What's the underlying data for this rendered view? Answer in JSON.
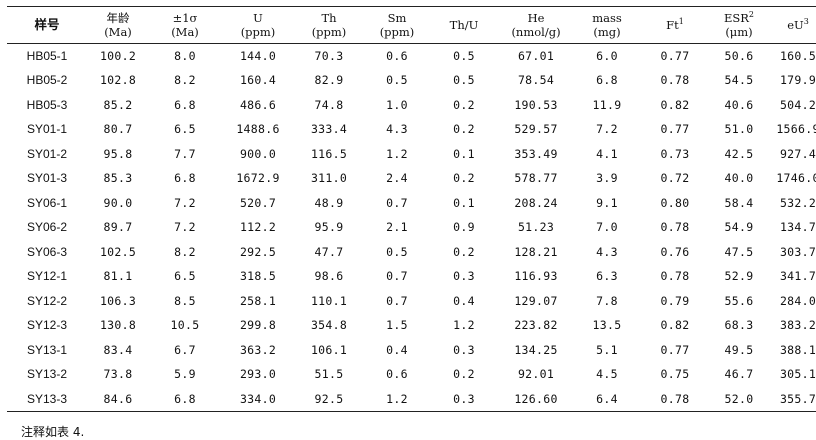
{
  "header": {
    "sample": "样号",
    "age": "年龄",
    "age_unit": "(Ma)",
    "err": "±1σ",
    "err_unit": "(Ma)",
    "u": "U",
    "u_unit": "(ppm)",
    "th": "Th",
    "th_unit": "(ppm)",
    "sm": "Sm",
    "sm_unit": "(ppm)",
    "thu": "Th/U",
    "he": "He",
    "he_unit": "(nmol/g)",
    "mass": "mass",
    "mass_unit": "(mg)",
    "ft": "Ft",
    "ft_sup": "1",
    "esr": "ESR",
    "esr_sup": "2",
    "esr_unit": "(μm)",
    "eu": "eU",
    "eu_sup": "3"
  },
  "rows": [
    [
      "HB05-1",
      "100.2",
      "8.0",
      "144.0",
      "70.3",
      "0.6",
      "0.5",
      "67.01",
      "6.0",
      "0.77",
      "50.6",
      "160.5"
    ],
    [
      "HB05-2",
      "102.8",
      "8.2",
      "160.4",
      "82.9",
      "0.5",
      "0.5",
      "78.54",
      "6.8",
      "0.78",
      "54.5",
      "179.9"
    ],
    [
      "HB05-3",
      "85.2",
      "6.8",
      "486.6",
      "74.8",
      "1.0",
      "0.2",
      "190.53",
      "11.9",
      "0.82",
      "40.6",
      "504.2"
    ],
    [
      "SY01-1",
      "80.7",
      "6.5",
      "1488.6",
      "333.4",
      "4.3",
      "0.2",
      "529.57",
      "7.2",
      "0.77",
      "51.0",
      "1566.9"
    ],
    [
      "SY01-2",
      "95.8",
      "7.7",
      "900.0",
      "116.5",
      "1.2",
      "0.1",
      "353.49",
      "4.1",
      "0.73",
      "42.5",
      "927.4"
    ],
    [
      "SY01-3",
      "85.3",
      "6.8",
      "1672.9",
      "311.0",
      "2.4",
      "0.2",
      "578.77",
      "3.9",
      "0.72",
      "40.0",
      "1746.0"
    ],
    [
      "SY06-1",
      "90.0",
      "7.2",
      "520.7",
      "48.9",
      "0.7",
      "0.1",
      "208.24",
      "9.1",
      "0.80",
      "58.4",
      "532.2"
    ],
    [
      "SY06-2",
      "89.7",
      "7.2",
      "112.2",
      "95.9",
      "2.1",
      "0.9",
      "51.23",
      "7.0",
      "0.78",
      "54.9",
      "134.7"
    ],
    [
      "SY06-3",
      "102.5",
      "8.2",
      "292.5",
      "47.7",
      "0.5",
      "0.2",
      "128.21",
      "4.3",
      "0.76",
      "47.5",
      "303.7"
    ],
    [
      "SY12-1",
      "81.1",
      "6.5",
      "318.5",
      "98.6",
      "0.7",
      "0.3",
      "116.93",
      "6.3",
      "0.78",
      "52.9",
      "341.7"
    ],
    [
      "SY12-2",
      "106.3",
      "8.5",
      "258.1",
      "110.1",
      "0.7",
      "0.4",
      "129.07",
      "7.8",
      "0.79",
      "55.6",
      "284.0"
    ],
    [
      "SY12-3",
      "130.8",
      "10.5",
      "299.8",
      "354.8",
      "1.5",
      "1.2",
      "223.82",
      "13.5",
      "0.82",
      "68.3",
      "383.2"
    ],
    [
      "SY13-1",
      "83.4",
      "6.7",
      "363.2",
      "106.1",
      "0.4",
      "0.3",
      "134.25",
      "5.1",
      "0.77",
      "49.5",
      "388.1"
    ],
    [
      "SY13-2",
      "73.8",
      "5.9",
      "293.0",
      "51.5",
      "0.6",
      "0.2",
      "92.01",
      "4.5",
      "0.75",
      "46.7",
      "305.1"
    ],
    [
      "SY13-3",
      "84.6",
      "6.8",
      "334.0",
      "92.5",
      "1.2",
      "0.3",
      "126.60",
      "6.4",
      "0.78",
      "52.0",
      "355.7"
    ]
  ],
  "note": "注释如表 4."
}
